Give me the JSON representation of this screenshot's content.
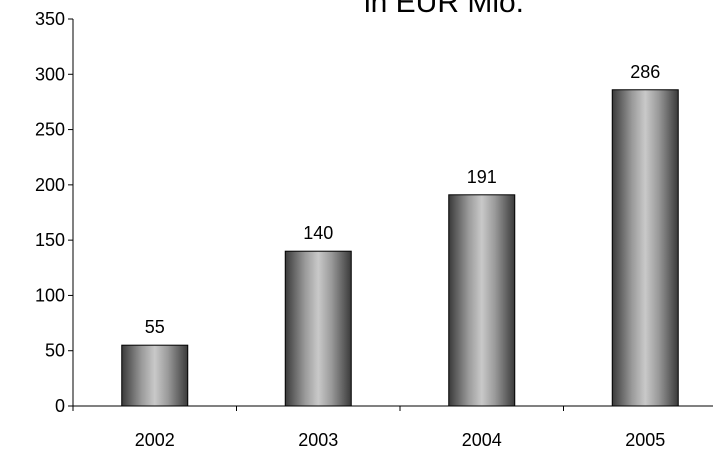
{
  "chart_data": {
    "type": "bar",
    "title": "in EUR Mio.",
    "categories": [
      "2002",
      "2003",
      "2004",
      "2005"
    ],
    "values": [
      55,
      140,
      191,
      286
    ],
    "data_labels": [
      "55",
      "140",
      "191",
      "286"
    ],
    "ylim": [
      0,
      350
    ],
    "yticks": [
      0,
      50,
      100,
      150,
      200,
      250,
      300,
      350
    ],
    "xlabel": "",
    "ylabel": "",
    "grid": false,
    "legend": "none",
    "bar_style": "gray cylinder gradient"
  }
}
